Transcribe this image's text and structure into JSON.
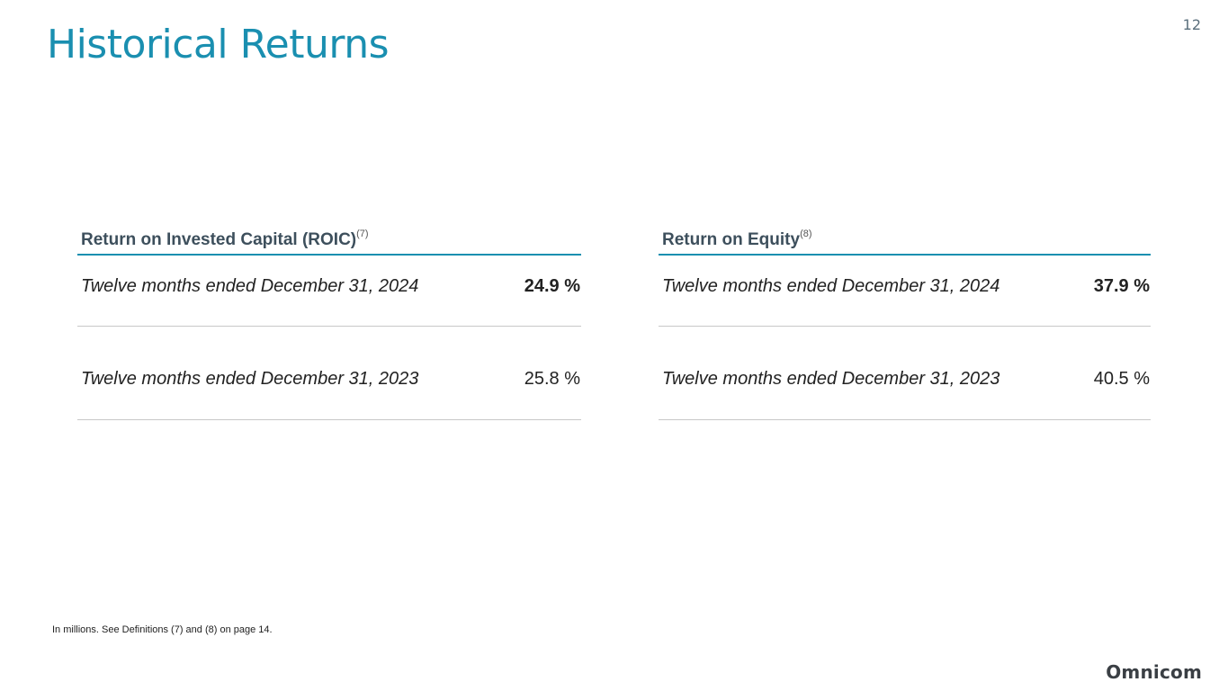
{
  "page": {
    "number": "12",
    "title": "Historical Returns"
  },
  "roic": {
    "heading": "Return on Invested Capital (ROIC)",
    "footnote_ref": "(7)",
    "rows": [
      {
        "label": "Twelve months ended December 31, 2024",
        "value": "24.9 %"
      },
      {
        "label": "Twelve months ended December 31, 2023",
        "value": "25.8 %"
      }
    ]
  },
  "roe": {
    "heading": "Return on Equity",
    "footnote_ref": "(8)",
    "rows": [
      {
        "label": "Twelve months ended December 31, 2024",
        "value": "37.9 %"
      },
      {
        "label": "Twelve months ended December 31, 2023",
        "value": "40.5 %"
      }
    ]
  },
  "footnote": "In millions.  See Definitions (7) and (8) on page 14.",
  "brand": {
    "logo_text": "Omnicom",
    "accent_color": "#1a8fb0"
  }
}
